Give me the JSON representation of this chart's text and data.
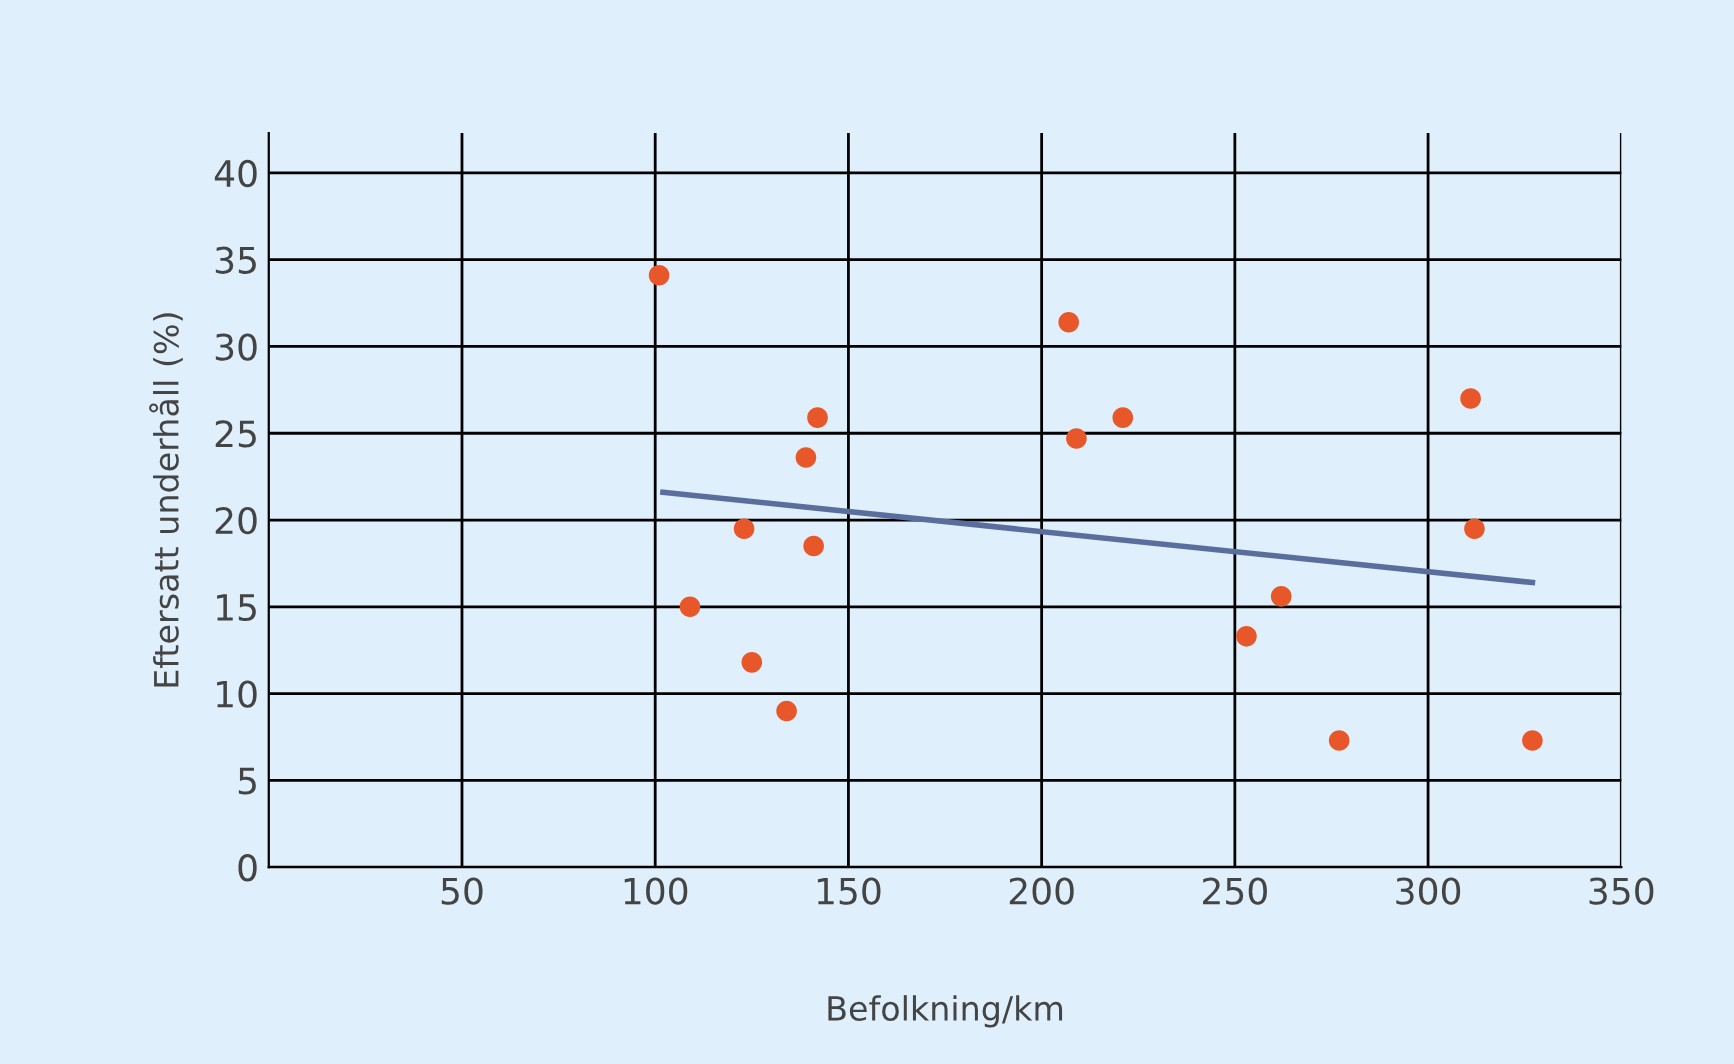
{
  "chart_data": {
    "type": "scatter",
    "xlabel": "Befolkning/km",
    "ylabel": "Eftersatt underhåll (%)",
    "xlim": [
      0,
      350
    ],
    "ylim": [
      0,
      42.3
    ],
    "xticks": [
      50,
      100,
      150,
      200,
      250,
      300,
      350
    ],
    "yticks": [
      0,
      5,
      10,
      15,
      20,
      25,
      30,
      35,
      40
    ],
    "grid": true,
    "series": [
      {
        "marker": "circle",
        "color": "#e8572a",
        "x": [
          101,
          109,
          123,
          125,
          134,
          139,
          141,
          142,
          207,
          209,
          221,
          253,
          262,
          277,
          311,
          312,
          327
        ],
        "values": [
          34.1,
          15.0,
          19.5,
          11.8,
          9.0,
          23.6,
          18.5,
          25.9,
          31.4,
          24.7,
          25.9,
          13.3,
          15.6,
          7.3,
          27.0,
          19.5,
          7.3
        ]
      },
      {
        "type": "line",
        "color": "#5a6e9e",
        "x": [
          102,
          327
        ],
        "values": [
          21.6,
          16.4
        ]
      }
    ]
  }
}
